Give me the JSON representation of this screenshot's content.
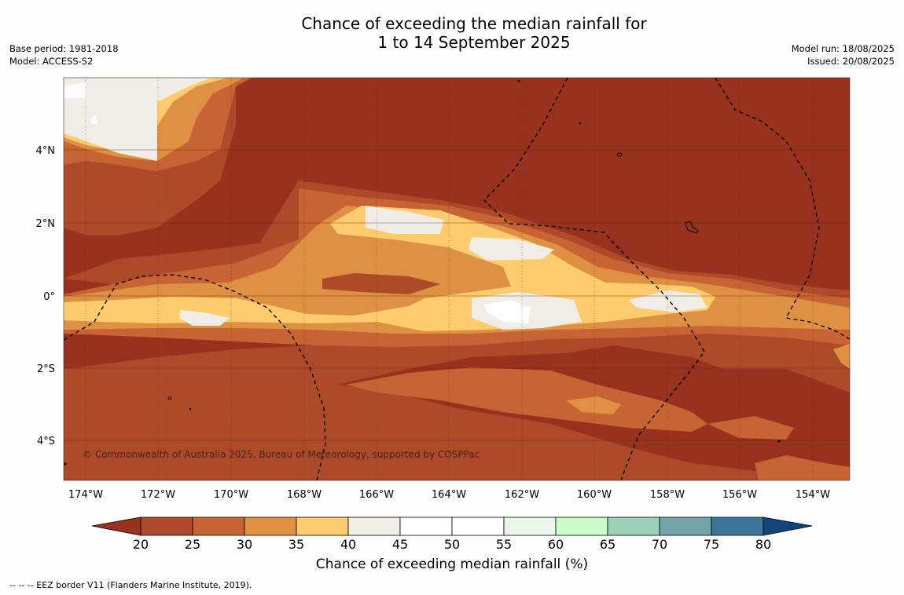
{
  "header": {
    "title_line1": "Chance of exceeding the median rainfall for",
    "title_line2": "1 to 14 September 2025",
    "base_period": "Base period: 1981-2018",
    "model": "Model: ACCESS-S2",
    "model_run": "Model run: 18/08/2025",
    "issued": "Issued: 20/08/2025"
  },
  "map": {
    "copyright": "© Commonwealth of Australia 2025, Bureau of Meteorology, supported by COSPPac",
    "lat_labels": [
      "4°N",
      "2°N",
      "0°",
      "2°S",
      "4°S"
    ],
    "lon_labels": [
      "174°W",
      "172°W",
      "170°W",
      "168°W",
      "166°W",
      "164°W",
      "162°W",
      "160°W",
      "158°W",
      "156°W",
      "154°W"
    ],
    "colors": {
      "lt20": "#98321f",
      "c20_25": "#ac4a29",
      "c25_30": "#c86434",
      "c30_35": "#df9143",
      "c35_40": "#fecb6d",
      "c40_45": "#f0ece6",
      "c45_55": "#ffffff",
      "c55_60": "#eaf6e8",
      "c60_65": "#c8fdc8",
      "c65_70": "#9ccfb8",
      "c70_75": "#72a4a8",
      "c75_80": "#3d7598",
      "gt80": "#10467c"
    }
  },
  "colorbar": {
    "ticks": [
      "20",
      "25",
      "30",
      "35",
      "40",
      "45",
      "50",
      "55",
      "60",
      "65",
      "70",
      "75",
      "80"
    ],
    "title": "Chance of exceeding median rainfall (%)"
  },
  "footnote": "--  --  -- EEZ border V11 (Flanders Marine Institute, 2019)."
}
